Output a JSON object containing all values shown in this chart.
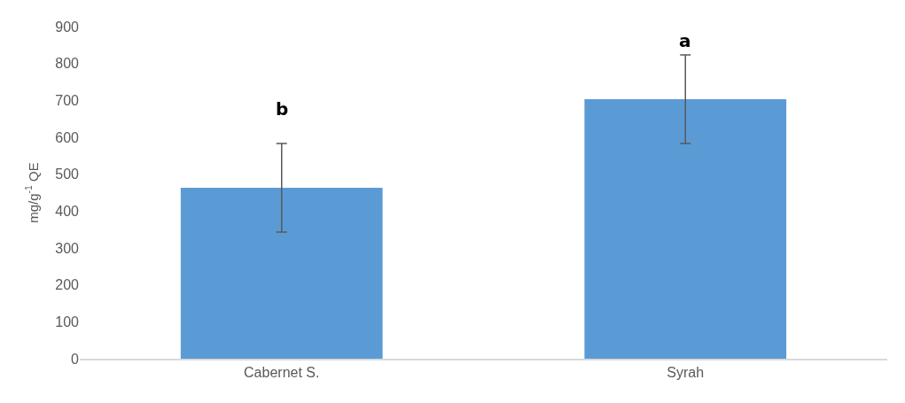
{
  "chart_data": {
    "type": "bar",
    "ylabel": "mg/g$^{-1}$ QE",
    "categories": [
      "Cabernet S.",
      "Syrah"
    ],
    "series": [
      {
        "color": "#5b9bd5",
        "values": [
          463,
          703
        ],
        "errors": [
          120,
          120
        ]
      }
    ],
    "ylim": [
      0,
      900
    ],
    "yticks": [
      0,
      100,
      200,
      300,
      400,
      500,
      600,
      700,
      800,
      900
    ],
    "annotations": [
      "b",
      "a"
    ]
  }
}
